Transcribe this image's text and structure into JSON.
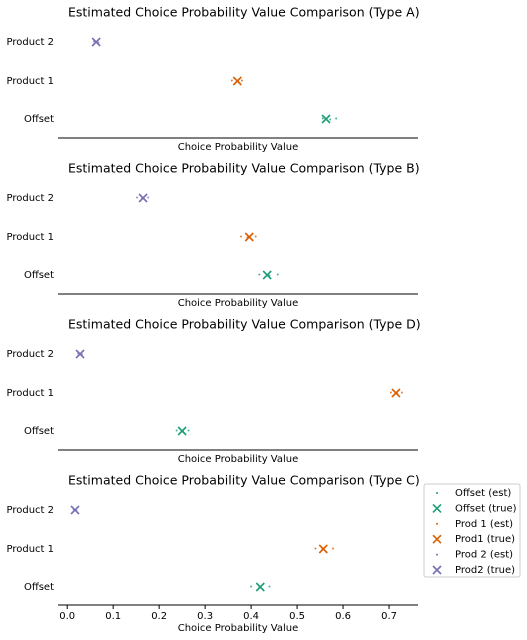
{
  "chart_data": [
    {
      "type": "scatter",
      "title": "Estimated Choice Probability Value Comparison (Type A)",
      "xlabel": "Choice Probability Value",
      "categories": [
        "Offset",
        "Product 1",
        "Product 2"
      ],
      "xlim": [
        -0.02,
        0.763
      ],
      "series": [
        {
          "color": "#1b9e77",
          "marker": "dot",
          "values": [
            0.556,
            0.572,
            0.585
          ]
        },
        {
          "color": "#1b9e77",
          "marker": "x",
          "values": [
            0.563
          ]
        },
        {
          "color": "#d95f02",
          "marker": "dot",
          "values": [
            0.358,
            0.372,
            0.38
          ]
        },
        {
          "color": "#d95f02",
          "marker": "x",
          "values": [
            0.37
          ]
        },
        {
          "color": "#7570b3",
          "marker": "dot",
          "values": [
            0.058,
            0.068
          ]
        },
        {
          "color": "#7570b3",
          "marker": "x",
          "values": [
            0.063
          ]
        }
      ]
    },
    {
      "type": "scatter",
      "title": "Estimated Choice Probability Value Comparison (Type B)",
      "xlabel": "Choice Probability Value",
      "categories": [
        "Offset",
        "Product 1",
        "Product 2"
      ],
      "xlim": [
        -0.02,
        0.763
      ],
      "series": [
        {
          "color": "#1b9e77",
          "marker": "dot",
          "values": [
            0.418,
            0.44,
            0.458
          ]
        },
        {
          "color": "#1b9e77",
          "marker": "x",
          "values": [
            0.435
          ]
        },
        {
          "color": "#d95f02",
          "marker": "dot",
          "values": [
            0.378,
            0.392,
            0.41
          ]
        },
        {
          "color": "#d95f02",
          "marker": "x",
          "values": [
            0.396
          ]
        },
        {
          "color": "#7570b3",
          "marker": "dot",
          "values": [
            0.152,
            0.163,
            0.176
          ]
        },
        {
          "color": "#7570b3",
          "marker": "x",
          "values": [
            0.165
          ]
        }
      ]
    },
    {
      "type": "scatter",
      "title": "Estimated Choice Probability Value Comparison (Type D)",
      "xlabel": "Choice Probability Value",
      "categories": [
        "Offset",
        "Product 1",
        "Product 2"
      ],
      "xlim": [
        -0.02,
        0.763
      ],
      "series": [
        {
          "color": "#1b9e77",
          "marker": "dot",
          "values": [
            0.238,
            0.252,
            0.264
          ]
        },
        {
          "color": "#1b9e77",
          "marker": "x",
          "values": [
            0.25
          ]
        },
        {
          "color": "#d95f02",
          "marker": "dot",
          "values": [
            0.704,
            0.718,
            0.728
          ]
        },
        {
          "color": "#d95f02",
          "marker": "x",
          "values": [
            0.715
          ]
        },
        {
          "color": "#7570b3",
          "marker": "dot",
          "values": [
            0.024,
            0.032
          ]
        },
        {
          "color": "#7570b3",
          "marker": "x",
          "values": [
            0.028
          ]
        }
      ]
    },
    {
      "type": "scatter",
      "title": "Estimated Choice Probability Value Comparison (Type C)",
      "xlabel": "Choice Probability Value",
      "categories": [
        "Offset",
        "Product 1",
        "Product 2"
      ],
      "xlim": [
        -0.02,
        0.763
      ],
      "xticks": [
        {
          "value": 0,
          "label": "0.0"
        },
        0.1,
        0.2,
        0.3,
        0.4,
        0.5,
        0.6,
        0.7
      ],
      "legend": "right",
      "series": [
        {
          "name": "Offset (est)",
          "color": "#1b9e77",
          "marker": "dot",
          "values": [
            0.4,
            0.418,
            0.44
          ]
        },
        {
          "name": "Offset (true)",
          "color": "#1b9e77",
          "marker": "x",
          "values": [
            0.42
          ]
        },
        {
          "name": "Prod 1 (est)",
          "color": "#d95f02",
          "marker": "dot",
          "values": [
            0.54,
            0.555,
            0.578
          ]
        },
        {
          "name": "Prod1 (true)",
          "color": "#d95f02",
          "marker": "x",
          "values": [
            0.557
          ]
        },
        {
          "name": "Prod 2 (est)",
          "color": "#7570b3",
          "marker": "dot",
          "values": [
            0.014,
            0.02
          ]
        },
        {
          "name": "Prod2 (true)",
          "color": "#7570b3",
          "marker": "x",
          "values": [
            0.017
          ]
        }
      ]
    }
  ]
}
